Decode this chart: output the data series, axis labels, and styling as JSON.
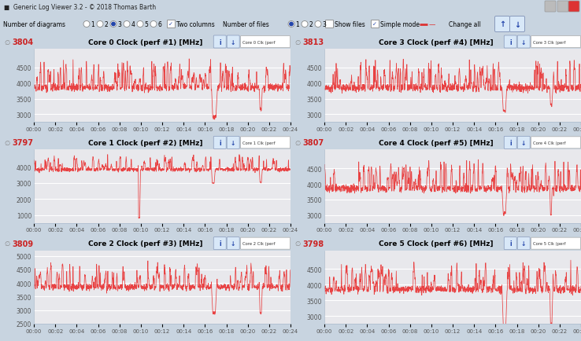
{
  "panels": [
    {
      "title": "Core 0 Clock (perf #1) [MHz]",
      "value": "3804",
      "ylim": [
        2750,
        5100
      ],
      "yticks": [
        3000,
        3500,
        4000,
        4500
      ],
      "y5000": true
    },
    {
      "title": "Core 3 Clock (perf #4) [MHz]",
      "value": "3813",
      "ylim": [
        2750,
        5100
      ],
      "yticks": [
        3000,
        3500,
        4000,
        4500
      ],
      "y5000": true
    },
    {
      "title": "Core 1 Clock (perf #2) [MHz]",
      "value": "3797",
      "ylim": [
        500,
        5100
      ],
      "yticks": [
        1000,
        2000,
        3000,
        4000
      ],
      "y5000": false
    },
    {
      "title": "Core 4 Clock (perf #5) [MHz]",
      "value": "3807",
      "ylim": [
        2750,
        5100
      ],
      "yticks": [
        3000,
        3500,
        4000,
        4500
      ],
      "y5000": true
    },
    {
      "title": "Core 2 Clock (perf #3) [MHz]",
      "value": "3809",
      "ylim": [
        2500,
        5200
      ],
      "yticks": [
        2500,
        3000,
        3500,
        4000,
        4500,
        5000
      ],
      "y5000": false
    },
    {
      "title": "Core 5 Clock (perf #6) [MHz]",
      "value": "3798",
      "ylim": [
        2750,
        5100
      ],
      "yticks": [
        3000,
        3500,
        4000,
        4500
      ],
      "y5000": true
    }
  ],
  "line_color": "#E83030",
  "plot_bg": "#E8E8EC",
  "header_bg": "#EAF0F8",
  "border_color": "#AABBCC",
  "outer_bg": "#C8D4E0",
  "toolbar_bg": "#D8E4F0",
  "titlebar_bg": "#B8C8DC",
  "grid_color": "#FFFFFF",
  "tick_color": "#555555",
  "duration_minutes": 24.5,
  "time_labels": [
    "00:00",
    "00:02",
    "00:04",
    "00:06",
    "00:08",
    "00:10",
    "00:12",
    "00:14",
    "00:16",
    "00:18",
    "00:20",
    "00:22",
    "00:24"
  ]
}
